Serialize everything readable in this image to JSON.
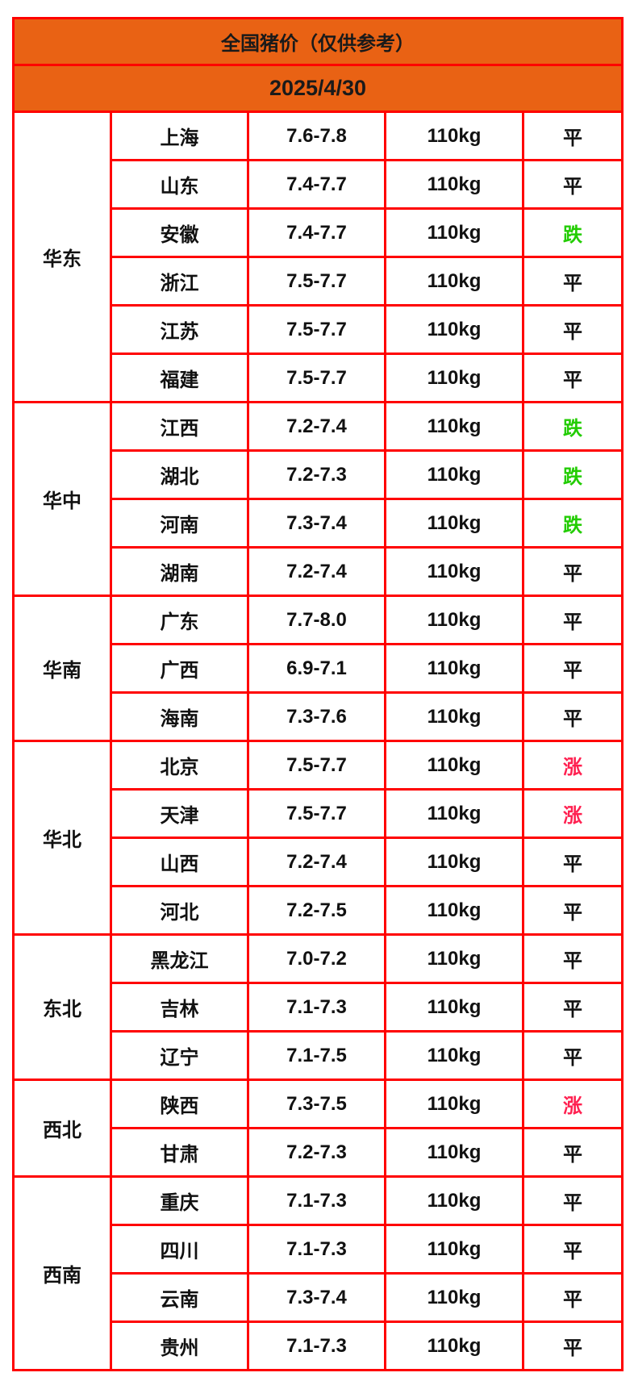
{
  "header": {
    "title": "全国猪价（仅供参考）",
    "date": "2025/4/30"
  },
  "colors": {
    "header_bg": "#e96214",
    "border": "#ff0000",
    "down": "#22cc00",
    "up": "#ff2050",
    "flat": "#111111"
  },
  "regions": [
    {
      "name": "华东",
      "rows": [
        {
          "province": "上海",
          "price": "7.6-7.8",
          "weight": "110kg",
          "trend": "平"
        },
        {
          "province": "山东",
          "price": "7.4-7.7",
          "weight": "110kg",
          "trend": "平"
        },
        {
          "province": "安徽",
          "price": "7.4-7.7",
          "weight": "110kg",
          "trend": "跌"
        },
        {
          "province": "浙江",
          "price": "7.5-7.7",
          "weight": "110kg",
          "trend": "平"
        },
        {
          "province": "江苏",
          "price": "7.5-7.7",
          "weight": "110kg",
          "trend": "平"
        },
        {
          "province": "福建",
          "price": "7.5-7.7",
          "weight": "110kg",
          "trend": "平"
        }
      ]
    },
    {
      "name": "华中",
      "rows": [
        {
          "province": "江西",
          "price": "7.2-7.4",
          "weight": "110kg",
          "trend": "跌"
        },
        {
          "province": "湖北",
          "price": "7.2-7.3",
          "weight": "110kg",
          "trend": "跌"
        },
        {
          "province": "河南",
          "price": "7.3-7.4",
          "weight": "110kg",
          "trend": "跌"
        },
        {
          "province": "湖南",
          "price": "7.2-7.4",
          "weight": "110kg",
          "trend": "平"
        }
      ]
    },
    {
      "name": "华南",
      "rows": [
        {
          "province": "广东",
          "price": "7.7-8.0",
          "weight": "110kg",
          "trend": "平"
        },
        {
          "province": "广西",
          "price": "6.9-7.1",
          "weight": "110kg",
          "trend": "平"
        },
        {
          "province": "海南",
          "price": "7.3-7.6",
          "weight": "110kg",
          "trend": "平"
        }
      ]
    },
    {
      "name": "华北",
      "rows": [
        {
          "province": "北京",
          "price": "7.5-7.7",
          "weight": "110kg",
          "trend": "涨"
        },
        {
          "province": "天津",
          "price": "7.5-7.7",
          "weight": "110kg",
          "trend": "涨"
        },
        {
          "province": "山西",
          "price": "7.2-7.4",
          "weight": "110kg",
          "trend": "平"
        },
        {
          "province": "河北",
          "price": "7.2-7.5",
          "weight": "110kg",
          "trend": "平"
        }
      ]
    },
    {
      "name": "东北",
      "rows": [
        {
          "province": "黑龙江",
          "price": "7.0-7.2",
          "weight": "110kg",
          "trend": "平"
        },
        {
          "province": "吉林",
          "price": "7.1-7.3",
          "weight": "110kg",
          "trend": "平"
        },
        {
          "province": "辽宁",
          "price": "7.1-7.5",
          "weight": "110kg",
          "trend": "平"
        }
      ]
    },
    {
      "name": "西北",
      "rows": [
        {
          "province": "陕西",
          "price": "7.3-7.5",
          "weight": "110kg",
          "trend": "涨"
        },
        {
          "province": "甘肃",
          "price": "7.2-7.3",
          "weight": "110kg",
          "trend": "平"
        }
      ]
    },
    {
      "name": "西南",
      "rows": [
        {
          "province": "重庆",
          "price": "7.1-7.3",
          "weight": "110kg",
          "trend": "平"
        },
        {
          "province": "四川",
          "price": "7.1-7.3",
          "weight": "110kg",
          "trend": "平"
        },
        {
          "province": "云南",
          "price": "7.3-7.4",
          "weight": "110kg",
          "trend": "平"
        },
        {
          "province": "贵州",
          "price": "7.1-7.3",
          "weight": "110kg",
          "trend": "平"
        }
      ]
    }
  ]
}
